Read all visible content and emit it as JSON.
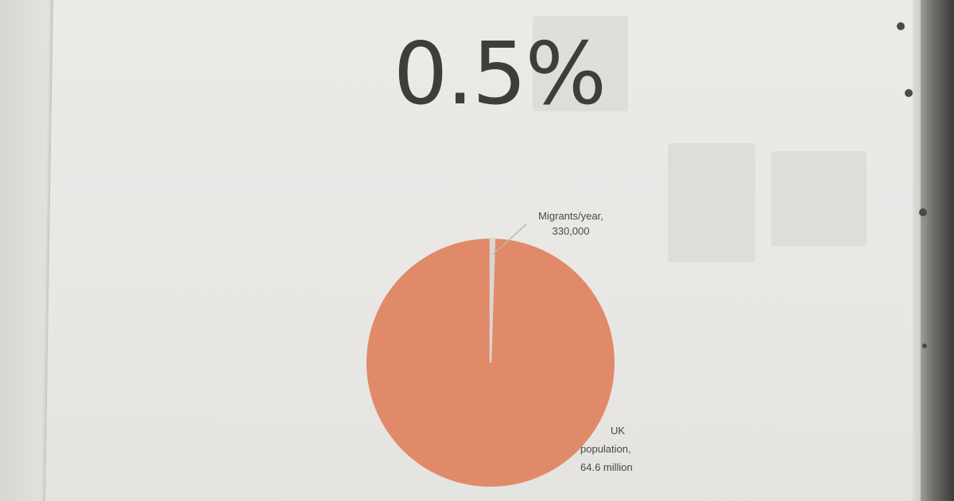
{
  "headline": "0.5%",
  "chart_data": {
    "type": "pie",
    "slices": [
      {
        "label": "Migrants/year,",
        "value_label": "330,000",
        "value": 330000,
        "color": "#dcd5d0"
      },
      {
        "label": "UK population,",
        "value_label": "64.6 million",
        "value": 64600000,
        "color": "#e08a69"
      }
    ]
  }
}
